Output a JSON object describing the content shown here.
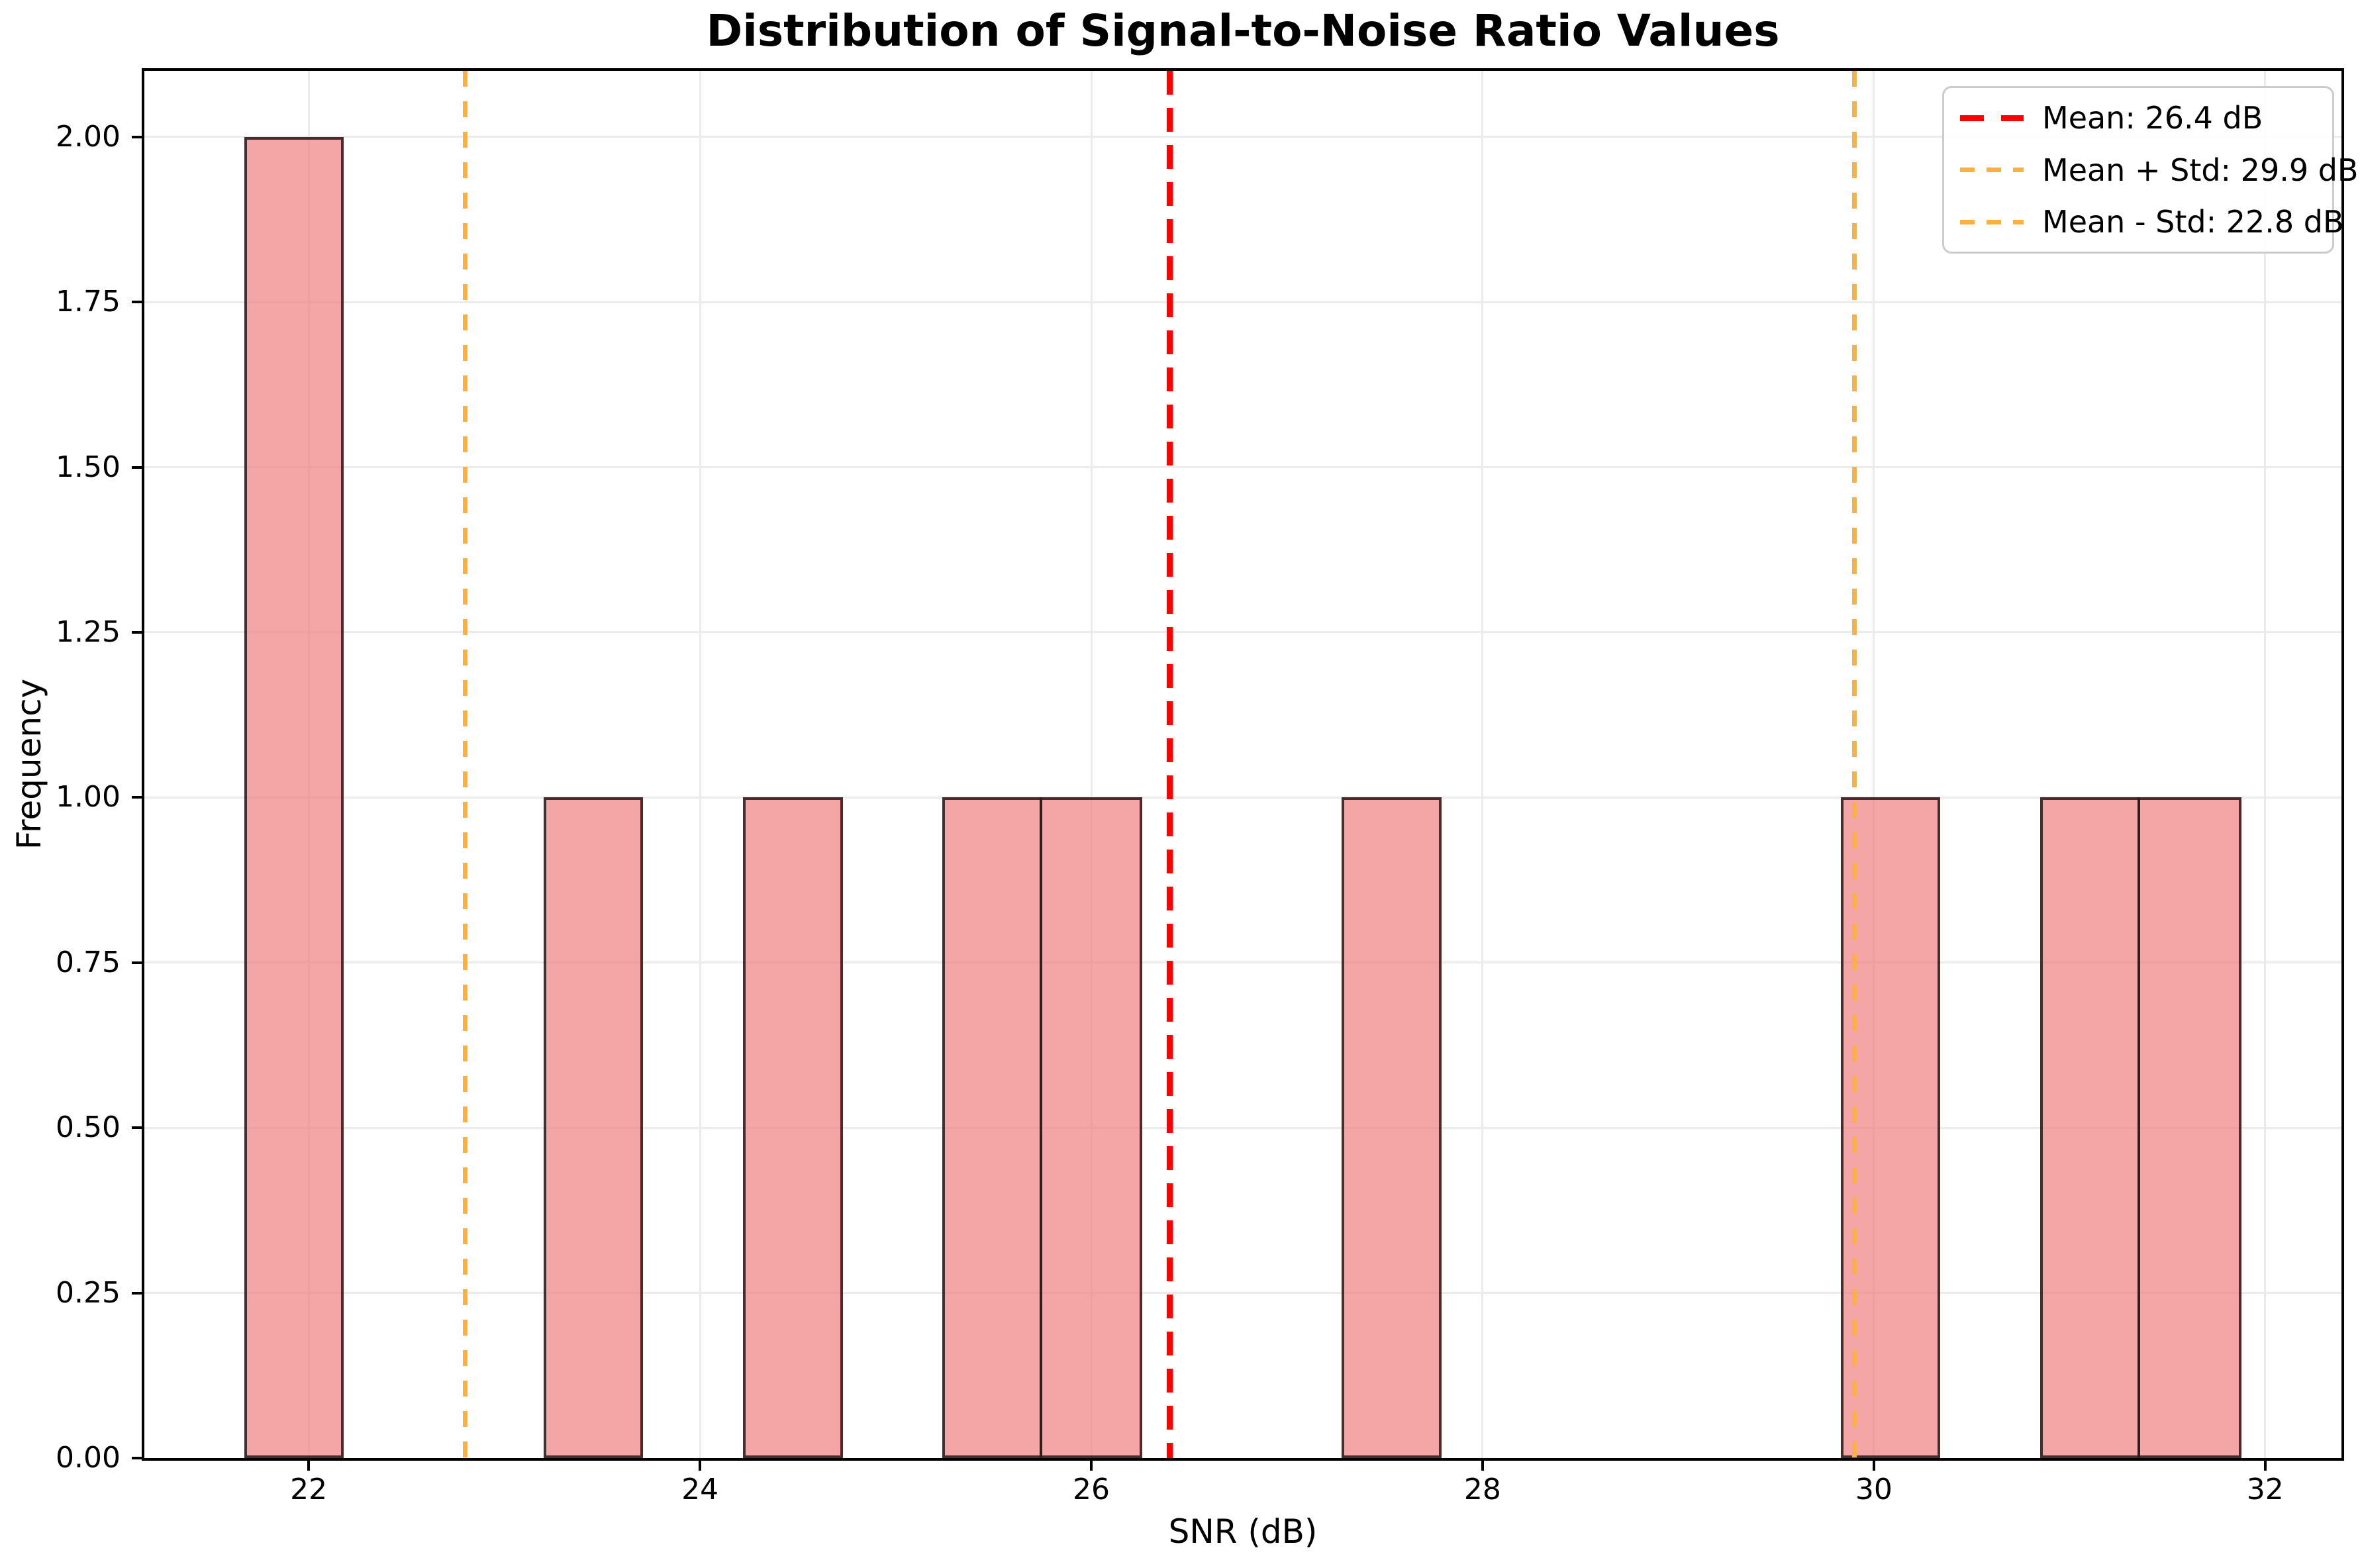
{
  "chart_data": {
    "type": "bar",
    "subtype": "histogram",
    "title": "Distribution of Signal-to-Noise Ratio Values",
    "xlabel": "SNR (dB)",
    "ylabel": "Frequency",
    "xlim": [
      21.16,
      32.39
    ],
    "ylim": [
      0,
      2.1
    ],
    "grid": true,
    "x_ticks": [
      22,
      24,
      26,
      28,
      30,
      32
    ],
    "x_tick_labels": [
      "22",
      "24",
      "26",
      "28",
      "30",
      "32"
    ],
    "y_ticks": [
      0,
      0.25,
      0.5,
      0.75,
      1,
      1.25,
      1.5,
      1.75,
      2
    ],
    "y_tick_labels": [
      "0.00",
      "0.25",
      "0.50",
      "0.75",
      "1.00",
      "1.25",
      "1.50",
      "1.75",
      "2.00"
    ],
    "bins": {
      "edges": [
        21.67,
        22.18,
        22.69,
        23.2,
        23.71,
        24.22,
        24.73,
        25.24,
        25.75,
        26.26,
        26.77,
        27.28,
        27.79,
        28.3,
        28.81,
        29.32,
        29.83,
        30.34,
        30.85,
        31.36,
        31.88
      ],
      "counts": [
        2,
        0,
        0,
        1,
        0,
        1,
        0,
        1,
        1,
        0,
        0,
        1,
        0,
        0,
        0,
        0,
        1,
        0,
        1,
        1
      ]
    },
    "bar_style": {
      "fill": "rgba(240, 128, 128, 0.7)",
      "edge": "rgba(0, 0, 0, 0.72)"
    },
    "grid_color": "#ebebeb",
    "vlines": [
      {
        "name": "mean",
        "x": 26.4,
        "color": "#ff0000",
        "width": 9,
        "dash_on": 36,
        "dash_off": 20,
        "label": "Mean: 26.4 dB"
      },
      {
        "name": "mean-plus-std",
        "x": 29.9,
        "color": "#fcb13f",
        "width": 7,
        "dash_on": 24,
        "dash_off": 22,
        "label": "Mean + Std: 29.9 dB"
      },
      {
        "name": "mean-minus-std",
        "x": 22.8,
        "color": "#fcb13f",
        "width": 7,
        "dash_on": 24,
        "dash_off": 22,
        "label": "Mean - Std: 22.8 dB"
      }
    ],
    "legend": {
      "position": "upper right",
      "entries": [
        {
          "label": "Mean: 26.4 dB"
        },
        {
          "label": "Mean + Std: 29.9 dB"
        },
        {
          "label": "Mean - Std: 22.8 dB"
        }
      ]
    }
  }
}
